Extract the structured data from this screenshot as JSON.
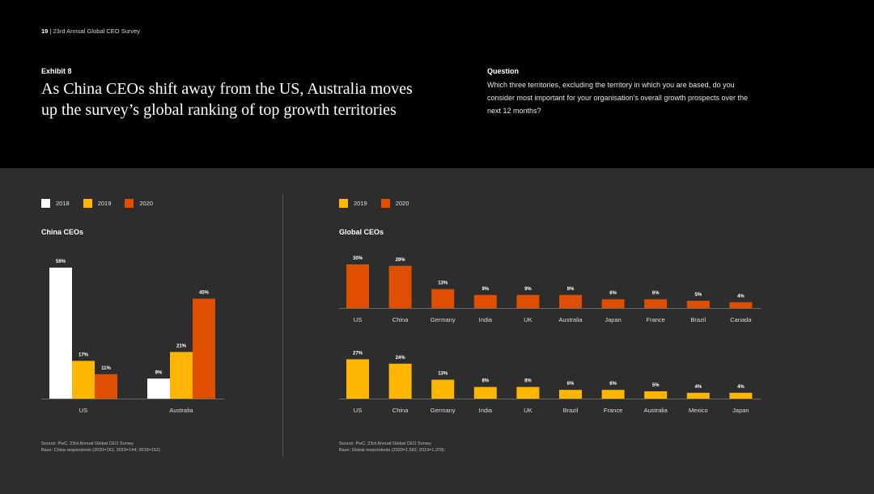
{
  "header": {
    "page_number": "19",
    "separator": "|",
    "report": "23rd Annual Global CEO Survey"
  },
  "exhibit": {
    "label": "Exhibit 8",
    "title": "As China CEOs shift away from the US, Australia moves up the survey’s global ranking of top growth territories"
  },
  "question": {
    "label": "Question",
    "text": "Which three territories, excluding the territory in which you are based, do you consider most important for your organisation’s overall growth prospects over the next 12 months?"
  },
  "colors": {
    "y2018": "#ffffff",
    "y2019": "#ffb600",
    "y2020": "#e04e00"
  },
  "legend_left": [
    "2018",
    "2019",
    "2020"
  ],
  "legend_right": [
    "2019",
    "2020"
  ],
  "chart_data": [
    {
      "type": "bar",
      "title": "China CEOs",
      "categories": [
        "US",
        "Australia"
      ],
      "series": [
        {
          "name": "2018",
          "values": [
            59,
            9
          ],
          "labels": [
            "59%",
            "9%"
          ]
        },
        {
          "name": "2019",
          "values": [
            17,
            21
          ],
          "labels": [
            "17%",
            "21%"
          ]
        },
        {
          "name": "2020",
          "values": [
            11,
            45
          ],
          "labels": [
            "11%",
            "45%"
          ]
        }
      ],
      "ylim": [
        0,
        60
      ],
      "source": "Source: PwC, 23rd Annual Global CEO Survey",
      "base": "Base: China respondents (2020=161; 2019=144; 2018=152)"
    },
    {
      "type": "bar",
      "title": "Global CEOs",
      "series": [
        {
          "name": "2020",
          "categories": [
            "US",
            "China",
            "Germany",
            "India",
            "UK",
            "Australia",
            "Japan",
            "France",
            "Brazil",
            "Canada"
          ],
          "values": [
            30,
            29,
            13,
            9,
            9,
            9,
            6,
            6,
            5,
            4
          ],
          "labels": [
            "30%",
            "29%",
            "13%",
            "9%",
            "9%",
            "9%",
            "6%",
            "6%",
            "5%",
            "4%"
          ]
        },
        {
          "name": "2019",
          "categories": [
            "US",
            "China",
            "Germany",
            "India",
            "UK",
            "Brazil",
            "France",
            "Australia",
            "Mexico",
            "Japan"
          ],
          "values": [
            27,
            24,
            13,
            8,
            8,
            6,
            6,
            5,
            4,
            4
          ],
          "labels": [
            "27%",
            "24%",
            "13%",
            "8%",
            "8%",
            "6%",
            "6%",
            "5%",
            "4%",
            "4%"
          ]
        }
      ],
      "ylim": [
        0,
        30
      ],
      "source": "Source: PwC, 23rd Annual Global CEO Survey",
      "base": "Base: Global respondents (2020=1,581; 2019=1,378)"
    }
  ]
}
